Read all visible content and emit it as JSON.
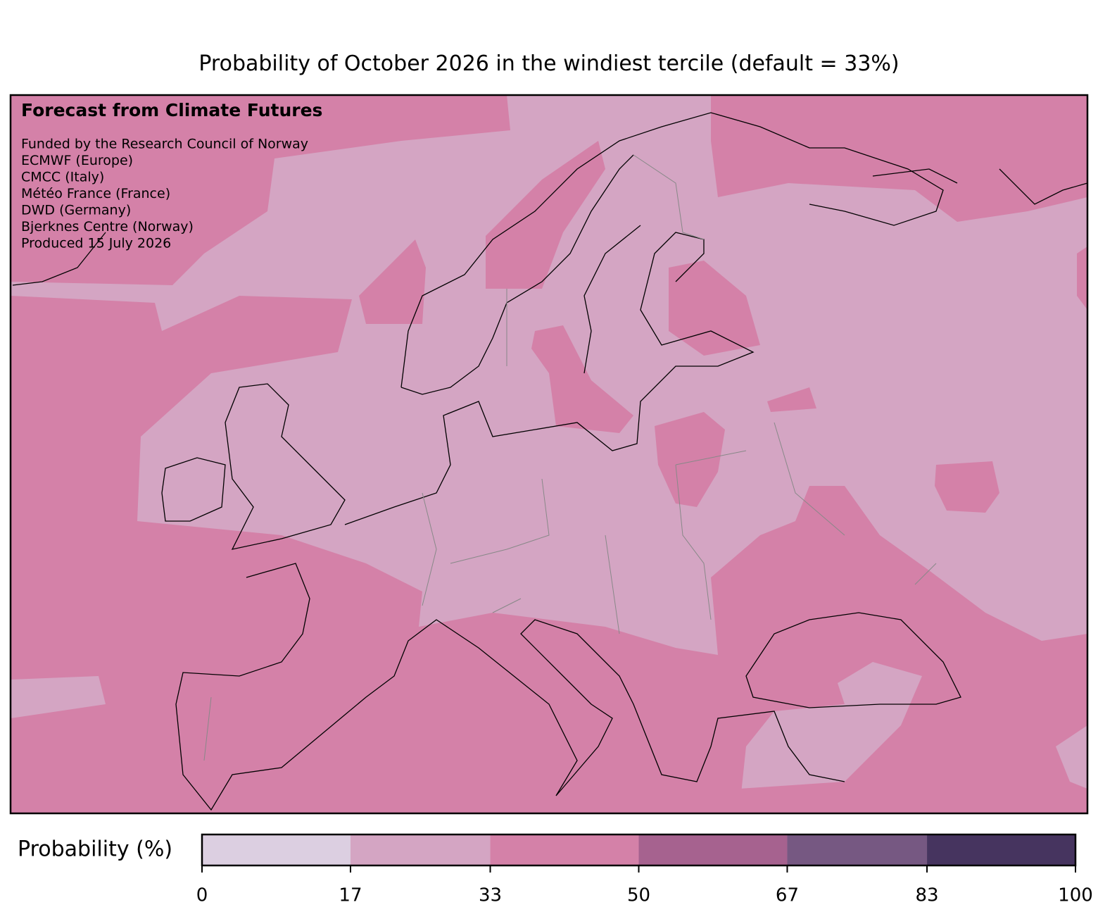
{
  "title": "Probability of October 2026 in the windiest tercile (default = 33%)",
  "heading": "Forecast from Climate Futures",
  "credits": [
    "Funded by the Research Council of Norway",
    "ECMWF (Europe)",
    "CMCC (Italy)",
    "Météo France (France)",
    "DWD (Germany)",
    "Bjerknes Centre (Norway)",
    "Produced 15 July 2026"
  ],
  "colorbar": {
    "label": "Probability (%)",
    "lim": [
      0,
      100
    ],
    "ticks": [
      0,
      17,
      33,
      50,
      67,
      83,
      100
    ],
    "colors": [
      "#dccfe1",
      "#d4a5c3",
      "#d481a8",
      "#a6628f",
      "#765882",
      "#46345f"
    ]
  }
}
